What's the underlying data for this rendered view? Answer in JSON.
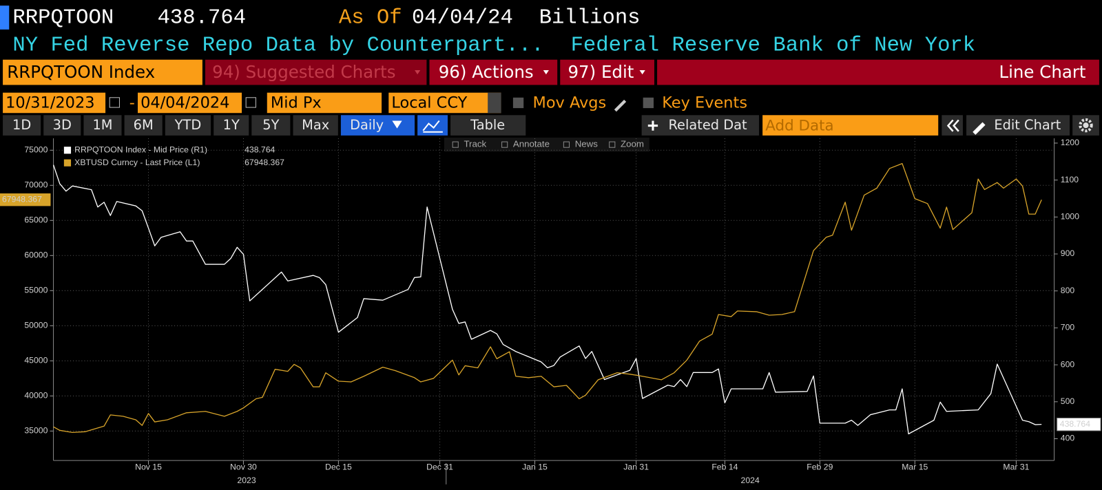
{
  "header": {
    "ticker": "RRPQTOON",
    "value": "438.764",
    "as_of_label": "As Of",
    "as_of_date": "04/04/24",
    "units": "Billions",
    "description": "NY Fed Reverse Repo Data by Counterpart...",
    "source": "Federal Reserve Bank of New York"
  },
  "toolbar": {
    "security": "RRPQTOON Index",
    "suggested": "94) Suggested Charts",
    "actions": "96) Actions",
    "edit": "97) Edit",
    "chart_kind": "Line Chart",
    "start_date": "10/31/2023",
    "separator": "-",
    "end_date": "04/04/2024",
    "price_field": "Mid Px",
    "currency": "Local CCY",
    "mov_avgs": "Mov Avgs",
    "key_events": "Key Events",
    "periods": [
      "1D",
      "3D",
      "1M",
      "6M",
      "YTD",
      "1Y",
      "5Y",
      "Max"
    ],
    "frequency": "Daily",
    "table": "Table",
    "related": "Related Dat",
    "add_data": "Add Data",
    "edit_chart": "Edit Chart",
    "chart_tools": [
      "Track",
      "Annotate",
      "News",
      "Zoom"
    ]
  },
  "chart_data": {
    "type": "line",
    "series": [
      {
        "name": "RRPQTOON Index - Mid Price (R1)",
        "color": "#ffffff",
        "axis": "y2",
        "x": [
          "2023-10-31",
          "2023-11-01",
          "2023-11-02",
          "2023-11-03",
          "2023-11-06",
          "2023-11-07",
          "2023-11-08",
          "2023-11-09",
          "2023-11-10",
          "2023-11-13",
          "2023-11-14",
          "2023-11-15",
          "2023-11-16",
          "2023-11-17",
          "2023-11-20",
          "2023-11-21",
          "2023-11-22",
          "2023-11-24",
          "2023-11-27",
          "2023-11-28",
          "2023-11-29",
          "2023-11-30",
          "2023-12-01",
          "2023-12-06",
          "2023-12-07",
          "2023-12-11",
          "2023-12-12",
          "2023-12-13",
          "2023-12-15",
          "2023-12-18",
          "2023-12-19",
          "2023-12-22",
          "2023-12-26",
          "2023-12-27",
          "2023-12-28",
          "2023-12-29",
          "2024-01-02",
          "2024-01-03",
          "2024-01-04",
          "2024-01-05",
          "2024-01-08",
          "2024-01-09",
          "2024-01-10",
          "2024-01-12",
          "2024-01-16",
          "2024-01-17",
          "2024-01-18",
          "2024-01-19",
          "2024-01-22",
          "2024-01-23",
          "2024-01-24",
          "2024-01-26",
          "2024-01-29",
          "2024-01-30",
          "2024-01-31",
          "2024-02-01",
          "2024-02-05",
          "2024-02-06",
          "2024-02-07",
          "2024-02-08",
          "2024-02-09",
          "2024-02-12",
          "2024-02-13",
          "2024-02-14",
          "2024-02-15",
          "2024-02-20",
          "2024-02-21",
          "2024-02-22",
          "2024-02-27",
          "2024-02-28",
          "2024-02-29",
          "2024-03-04",
          "2024-03-05",
          "2024-03-06",
          "2024-03-08",
          "2024-03-11",
          "2024-03-12",
          "2024-03-13",
          "2024-03-14",
          "2024-03-18",
          "2024-03-19",
          "2024-03-20",
          "2024-03-25",
          "2024-03-27",
          "2024-03-28",
          "2024-04-01",
          "2024-04-02",
          "2024-04-03",
          "2024-04-04"
        ],
        "values": [
          1141,
          1090,
          1070,
          1084,
          1074,
          1027,
          1040,
          1004,
          1042,
          1030,
          1017,
          970,
          922,
          945,
          960,
          935,
          935,
          872,
          872,
          888,
          918,
          899,
          773,
          851,
          827,
          842,
          836,
          817,
          688,
          728,
          779,
          775,
          804,
          836,
          838,
          1027,
          750,
          712,
          716,
          669,
          693,
          684,
          655,
          636,
          608,
          592,
          598,
          621,
          651,
          617,
          636,
          560,
          579,
          585,
          617,
          509,
          545,
          541,
          560,
          541,
          579,
          579,
          589,
          497,
          535,
          535,
          579,
          526,
          528,
          570,
          442,
          442,
          450,
          436,
          465,
          478,
          478,
          535,
          413,
          450,
          499,
          474,
          478,
          522,
          602,
          450,
          446,
          438,
          438.764
        ]
      },
      {
        "name": "XBTUSD Curncy - Last Price (L1)",
        "color": "#d8a42a",
        "axis": "y",
        "x": [
          "2023-10-31",
          "2023-11-01",
          "2023-11-03",
          "2023-11-05",
          "2023-11-08",
          "2023-11-09",
          "2023-11-11",
          "2023-11-13",
          "2023-11-14",
          "2023-11-15",
          "2023-11-16",
          "2023-11-18",
          "2023-11-21",
          "2023-11-24",
          "2023-11-27",
          "2023-11-29",
          "2023-11-30",
          "2023-12-02",
          "2023-12-03",
          "2023-12-05",
          "2023-12-07",
          "2023-12-08",
          "2023-12-09",
          "2023-12-11",
          "2023-12-12",
          "2023-12-13",
          "2023-12-15",
          "2023-12-17",
          "2023-12-19",
          "2023-12-22",
          "2023-12-24",
          "2023-12-27",
          "2023-12-28",
          "2023-12-30",
          "2024-01-02",
          "2024-01-03",
          "2024-01-04",
          "2024-01-06",
          "2024-01-08",
          "2024-01-09",
          "2024-01-11",
          "2024-01-12",
          "2024-01-14",
          "2024-01-16",
          "2024-01-18",
          "2024-01-20",
          "2024-01-22",
          "2024-01-23",
          "2024-01-25",
          "2024-01-28",
          "2024-01-30",
          "2024-02-01",
          "2024-02-04",
          "2024-02-06",
          "2024-02-08",
          "2024-02-10",
          "2024-02-12",
          "2024-02-13",
          "2024-02-15",
          "2024-02-16",
          "2024-02-19",
          "2024-02-21",
          "2024-02-23",
          "2024-02-25",
          "2024-02-28",
          "2024-03-01",
          "2024-03-02",
          "2024-03-04",
          "2024-03-05",
          "2024-03-07",
          "2024-03-09",
          "2024-03-11",
          "2024-03-13",
          "2024-03-15",
          "2024-03-17",
          "2024-03-19",
          "2024-03-20",
          "2024-03-21",
          "2024-03-24",
          "2024-03-25",
          "2024-03-26",
          "2024-03-28",
          "2024-03-29",
          "2024-03-31",
          "2024-04-01",
          "2024-04-02",
          "2024-04-03",
          "2024-04-04"
        ],
        "values": [
          35600,
          35100,
          34800,
          34900,
          35700,
          37300,
          37100,
          36600,
          35800,
          37500,
          36300,
          36600,
          37600,
          37800,
          37100,
          37800,
          38300,
          39600,
          39800,
          43800,
          43500,
          44500,
          44000,
          41300,
          41300,
          43300,
          42100,
          42000,
          42800,
          44100,
          43600,
          42600,
          42000,
          42500,
          45100,
          43000,
          44300,
          44000,
          47000,
          45300,
          46300,
          42800,
          42600,
          42800,
          41300,
          41500,
          39600,
          40100,
          42300,
          43300,
          43100,
          42800,
          42300,
          43300,
          45100,
          47800,
          48800,
          51600,
          51300,
          52100,
          52000,
          51500,
          51600,
          52000,
          60700,
          62600,
          62900,
          67600,
          63600,
          68600,
          69600,
          72400,
          73100,
          68100,
          67400,
          63900,
          66900,
          63700,
          66100,
          70900,
          69400,
          70400,
          69600,
          70900,
          69900,
          65900,
          65900,
          67948.367
        ]
      }
    ],
    "xlim": [
      "2023-10-31",
      "2024-04-06"
    ],
    "xticks": [
      {
        "value": "2023-11-15",
        "label": "Nov 15"
      },
      {
        "value": "2023-11-30",
        "label": "Nov 30"
      },
      {
        "value": "2023-12-15",
        "label": "Dec 15"
      },
      {
        "value": "2023-12-31",
        "label": "Dec 31"
      },
      {
        "value": "2024-01-15",
        "label": "Jan 15"
      },
      {
        "value": "2024-01-31",
        "label": "Jan 31"
      },
      {
        "value": "2024-02-14",
        "label": "Feb 14"
      },
      {
        "value": "2024-02-29",
        "label": "Feb 29"
      },
      {
        "value": "2024-03-15",
        "label": "Mar 15"
      },
      {
        "value": "2024-03-31",
        "label": "Mar 31"
      }
    ],
    "year_labels": [
      "2023",
      "2024"
    ],
    "ylim": [
      30800,
      76700
    ],
    "yticks": [
      35000,
      40000,
      45000,
      50000,
      55000,
      60000,
      65000,
      70000,
      75000
    ],
    "y2lim": [
      341,
      1213
    ],
    "y2ticks": [
      400,
      500,
      600,
      700,
      800,
      900,
      1000,
      1100,
      1200
    ],
    "grid": true
  }
}
